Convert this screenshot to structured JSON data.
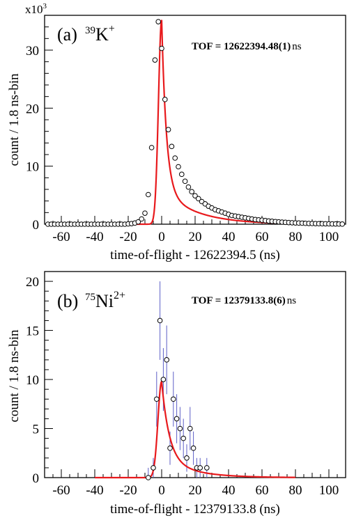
{
  "chart_data": [
    {
      "type": "scatter",
      "panel_label": "(a)",
      "species": {
        "mass": "39",
        "element": "K",
        "charge": "+"
      },
      "tof_annotation": "TOF = 12622394.48(1)",
      "tof_unit": "ns",
      "xlabel": "time-of-flight - 12622394.5 (ns)",
      "ylabel": "count / 1.8 ns-bin",
      "y_multiplier": "x10",
      "y_multiplier_exp": "3",
      "xlim": [
        -70,
        110
      ],
      "ylim": [
        0,
        36
      ],
      "xticks": [
        "-60",
        "-40",
        "-20",
        "0",
        "20",
        "40",
        "60",
        "80",
        "100"
      ],
      "yticks": [
        "0",
        "10",
        "20",
        "30"
      ],
      "fit_color": "#e8191c",
      "fit": {
        "amplitude": 35.2,
        "center": 0,
        "rise": 1.9,
        "fast_decay": 2.8,
        "slow_decay": 20,
        "slow_fraction": 0.17,
        "x_start": -40,
        "x_end": 80
      },
      "series": [
        {
          "x": [
            -68,
            -66,
            -64,
            -62,
            -60,
            -58,
            -56,
            -54,
            -52,
            -50,
            -48,
            -46,
            -44,
            -42,
            -40,
            -38,
            -36,
            -34,
            -32,
            -30,
            -28,
            -26,
            -24,
            -22,
            -20,
            -18,
            -16,
            -14,
            -12,
            -10,
            -8,
            -6,
            -4,
            -2,
            0,
            2,
            4,
            6,
            8,
            10,
            12,
            14,
            16,
            18,
            20,
            22,
            24,
            26,
            28,
            30,
            32,
            34,
            36,
            38,
            40,
            42,
            44,
            46,
            48,
            50,
            52,
            54,
            56,
            58,
            60,
            62,
            64,
            66,
            68,
            70,
            72,
            74,
            76,
            78,
            80,
            82,
            84,
            86,
            88,
            90,
            92,
            94,
            96,
            98,
            100,
            102,
            104,
            106,
            108
          ],
          "y": [
            0,
            0,
            0,
            0,
            0,
            0,
            0,
            0,
            0,
            0,
            0,
            0,
            0,
            0,
            0,
            0,
            0,
            0,
            0,
            0,
            0,
            0,
            0,
            0,
            0.05,
            0.1,
            0.2,
            0.4,
            0.9,
            1.9,
            5.1,
            13.2,
            28.3,
            34.9,
            30.3,
            21.5,
            16.3,
            13.4,
            11.4,
            9.9,
            8.6,
            7.4,
            6.4,
            5.6,
            4.9,
            4.4,
            3.9,
            3.5,
            3.1,
            2.8,
            2.5,
            2.3,
            2.1,
            1.9,
            1.7,
            1.5,
            1.4,
            1.3,
            1.2,
            1.1,
            1.0,
            0.9,
            0.8,
            0.75,
            0.7,
            0.62,
            0.55,
            0.5,
            0.45,
            0.4,
            0.36,
            0.32,
            0.28,
            0.25,
            0.22,
            0.2,
            0.18,
            0.15,
            0.13,
            0.12,
            0.1,
            0.09,
            0.08,
            0.07,
            0.06,
            0.05,
            0.04,
            0.03,
            0.02
          ]
        }
      ]
    },
    {
      "type": "scatter",
      "panel_label": "(b)",
      "species": {
        "mass": "75",
        "element": "Ni",
        "charge": "2+"
      },
      "tof_annotation": "TOF = 12379133.8(6)",
      "tof_unit": "ns",
      "xlabel": "time-of-flight - 12379133.8 (ns)",
      "ylabel": "count / 1.8 ns-bin",
      "xlim": [
        -70,
        110
      ],
      "ylim": [
        0,
        21
      ],
      "xticks": [
        "-60",
        "-40",
        "-20",
        "0",
        "20",
        "40",
        "60",
        "80",
        "100"
      ],
      "yticks": [
        "0",
        "5",
        "10",
        "15",
        "20"
      ],
      "fit_color": "#e8191c",
      "errorbar_color": "#5c5ec6",
      "fit": {
        "amplitude": 9.8,
        "center": 0,
        "rise": 2.2,
        "fast_decay": 4.5,
        "slow_decay": 18,
        "slow_fraction": 0.2,
        "x_start": -40,
        "x_end": 80
      },
      "series": [
        {
          "x": [
            -8,
            -5,
            -3,
            -1,
            1,
            3,
            5,
            7,
            9,
            11,
            13,
            15,
            17,
            19,
            21,
            23,
            27
          ],
          "y": [
            0,
            1,
            8,
            16,
            10,
            12,
            3,
            8,
            6,
            5,
            4,
            2,
            5,
            3,
            1,
            1,
            1
          ],
          "err": [
            1,
            1,
            2.8,
            4,
            3.2,
            3.5,
            1.7,
            2.8,
            2.5,
            2.2,
            2,
            1.4,
            2.2,
            1.7,
            1,
            1,
            1
          ]
        }
      ]
    }
  ]
}
